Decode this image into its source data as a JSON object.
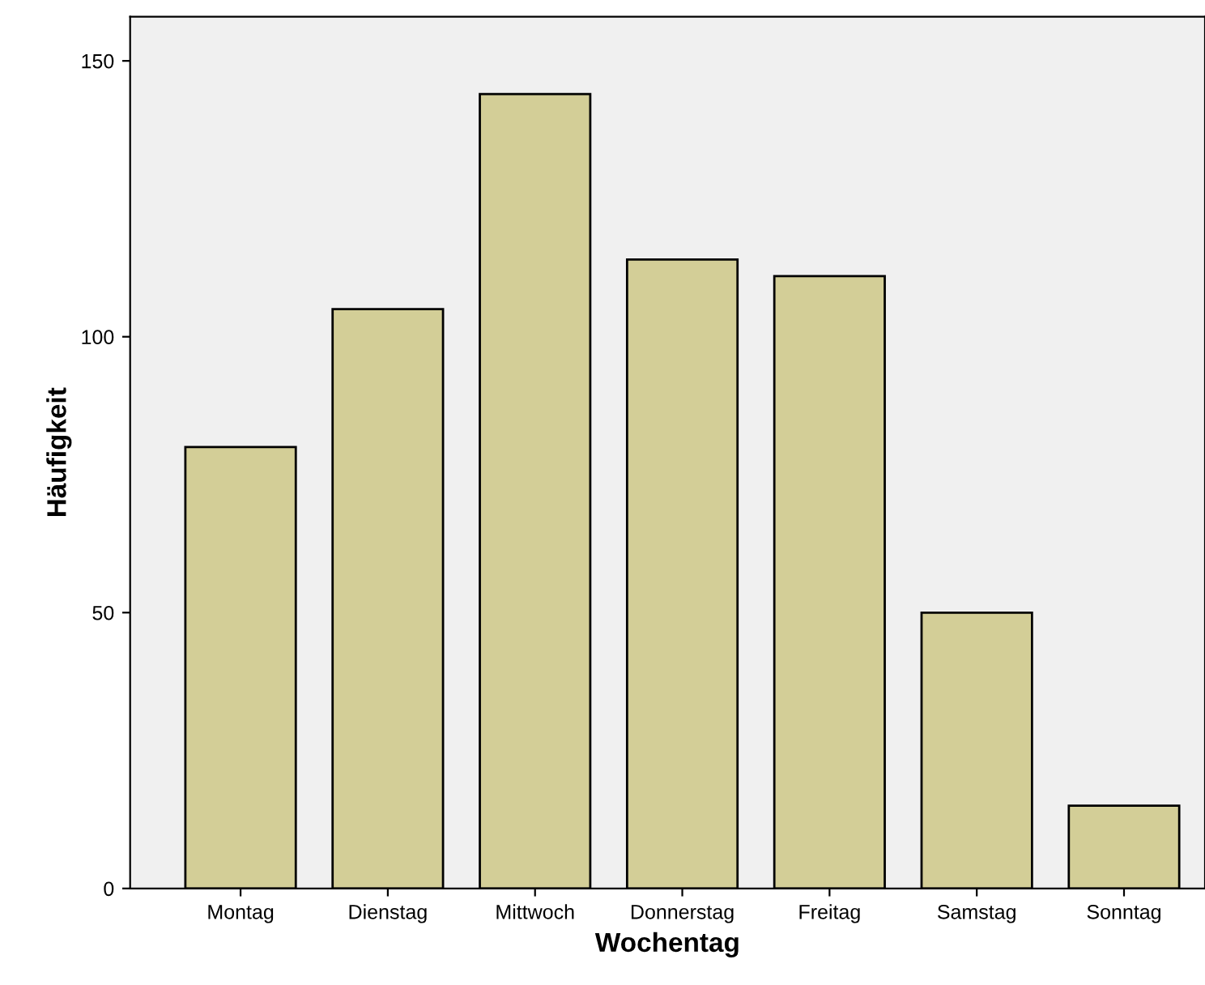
{
  "chart_data": {
    "type": "bar",
    "xlabel": "Wochentag",
    "ylabel": "Häufigkeit",
    "categories": [
      "Montag",
      "Dienstag",
      "Mittwoch",
      "Donnerstag",
      "Freitag",
      "Samstag",
      "Sonntag"
    ],
    "values": [
      80,
      105,
      144,
      114,
      111,
      50,
      15
    ],
    "color": "#d3ce97",
    "ylim": [
      0,
      158
    ],
    "yticks": [
      0,
      50,
      100,
      150
    ],
    "grid": false
  }
}
